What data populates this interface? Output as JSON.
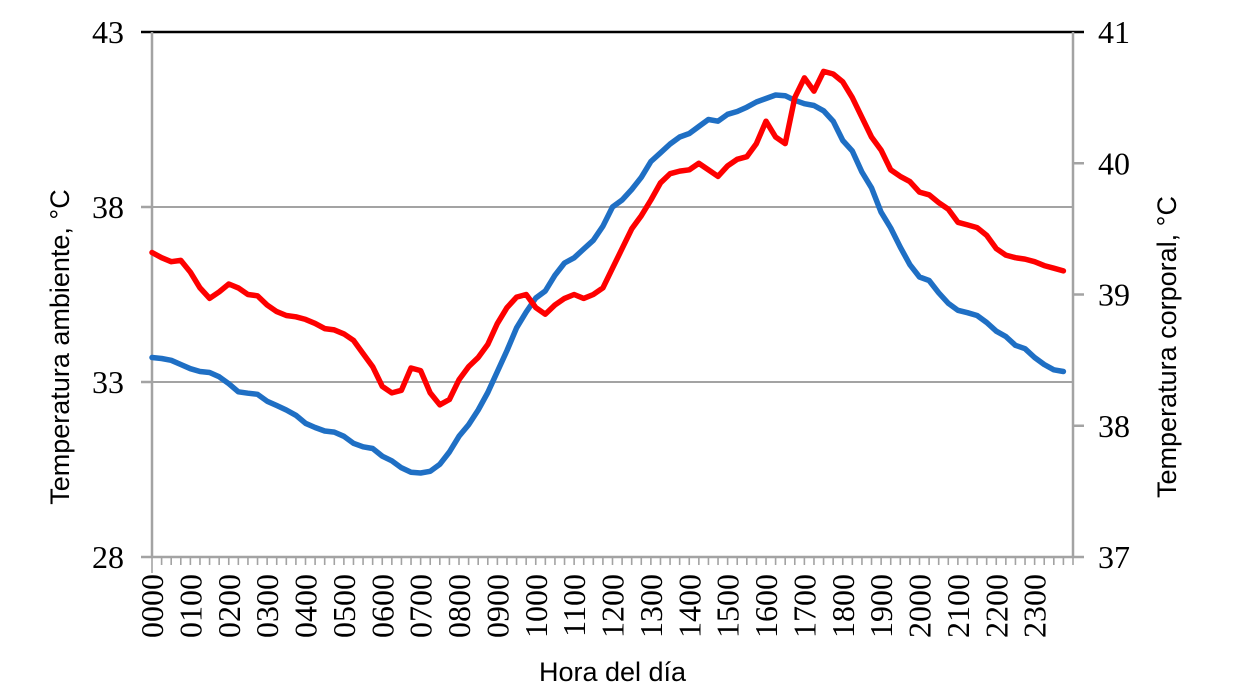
{
  "chart_data": {
    "type": "line",
    "title": "",
    "legend": "none",
    "grid": "horizontal-only",
    "x_axis": {
      "label": "Hora del día",
      "tick_labels": [
        "0000",
        "0100",
        "0200",
        "0300",
        "0400",
        "0500",
        "0600",
        "0700",
        "0800",
        "0900",
        "1000",
        "1100",
        "1200",
        "1300",
        "1400",
        "1500",
        "1600",
        "1700",
        "1800",
        "1900",
        "2000",
        "2100",
        "2200",
        "2300"
      ],
      "minor_tick_minutes": 15,
      "range_hours": [
        0,
        24
      ]
    },
    "y_axis_left": {
      "label": "Temperatura ambiente, °C",
      "tick_labels": [
        "43",
        "38",
        "33",
        "28"
      ],
      "ticks": [
        43,
        38,
        33,
        28
      ],
      "range": [
        28,
        43
      ],
      "gridlines_at": [
        38,
        33
      ]
    },
    "y_axis_right": {
      "label": "Temperatura corporal, °C",
      "tick_labels": [
        "41",
        "40",
        "39",
        "38",
        "37"
      ],
      "ticks": [
        41,
        40,
        39,
        38,
        37
      ],
      "range": [
        37,
        41
      ]
    },
    "sampling": {
      "start_time": "0000",
      "interval_minutes": 15,
      "points": 96
    },
    "series": [
      {
        "name": "Temperatura ambiente, °C",
        "axis": "left",
        "color": "#1F6FC4",
        "values": [
          33.7,
          33.67,
          33.62,
          33.5,
          33.38,
          33.3,
          33.27,
          33.15,
          32.95,
          32.72,
          32.68,
          32.65,
          32.45,
          32.33,
          32.2,
          32.05,
          31.82,
          31.7,
          31.6,
          31.57,
          31.45,
          31.25,
          31.15,
          31.1,
          30.88,
          30.75,
          30.55,
          30.42,
          30.4,
          30.45,
          30.65,
          31.0,
          31.45,
          31.78,
          32.2,
          32.7,
          33.3,
          33.9,
          34.55,
          35.0,
          35.4,
          35.6,
          36.05,
          36.4,
          36.55,
          36.8,
          37.05,
          37.45,
          38.0,
          38.2,
          38.5,
          38.85,
          39.3,
          39.55,
          39.8,
          40.0,
          40.1,
          40.3,
          40.5,
          40.45,
          40.65,
          40.73,
          40.85,
          41.0,
          41.1,
          41.2,
          41.18,
          41.05,
          40.95,
          40.9,
          40.75,
          40.45,
          39.9,
          39.6,
          39.0,
          38.55,
          37.85,
          37.4,
          36.85,
          36.35,
          36.0,
          35.9,
          35.55,
          35.25,
          35.05,
          34.98,
          34.9,
          34.7,
          34.45,
          34.3,
          34.05,
          33.95,
          33.7,
          33.5,
          33.35,
          33.3
        ]
      },
      {
        "name": "Temperatura corporal, °C",
        "axis": "right",
        "color": "#FE0000",
        "values": [
          39.32,
          39.28,
          39.25,
          39.26,
          39.17,
          39.05,
          38.97,
          39.02,
          39.08,
          39.05,
          39.0,
          38.99,
          38.92,
          38.87,
          38.84,
          38.83,
          38.81,
          38.78,
          38.74,
          38.73,
          38.7,
          38.65,
          38.55,
          38.45,
          38.3,
          38.25,
          38.27,
          38.44,
          38.42,
          38.25,
          38.16,
          38.2,
          38.35,
          38.45,
          38.52,
          38.62,
          38.78,
          38.9,
          38.98,
          39.0,
          38.9,
          38.85,
          38.92,
          38.97,
          39.0,
          38.97,
          39.0,
          39.05,
          39.2,
          39.35,
          39.5,
          39.6,
          39.72,
          39.85,
          39.92,
          39.94,
          39.95,
          40.0,
          39.95,
          39.9,
          39.98,
          40.03,
          40.05,
          40.15,
          40.32,
          40.2,
          40.15,
          40.5,
          40.65,
          40.55,
          40.7,
          40.68,
          40.62,
          40.5,
          40.35,
          40.2,
          40.1,
          39.95,
          39.9,
          39.86,
          39.78,
          39.76,
          39.7,
          39.65,
          39.55,
          39.53,
          39.51,
          39.45,
          39.35,
          39.3,
          39.28,
          39.27,
          39.25,
          39.22,
          39.2,
          39.18
        ]
      }
    ],
    "style": {
      "series_stroke_width": 5.5,
      "grid_color": "#A3A3A3",
      "axis_color": "#A3A3A3",
      "top_border_color": "#000000",
      "text_color": "#000000"
    }
  }
}
